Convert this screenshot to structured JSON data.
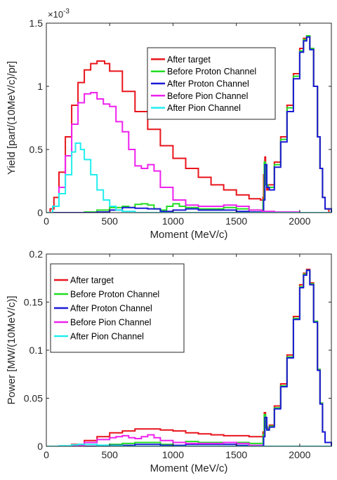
{
  "colors": {
    "after_target": "#e8141b",
    "before_proton": "#22dd22",
    "after_proton": "#1a1ad6",
    "before_pion": "#ee22ee",
    "after_pion": "#22eeee"
  },
  "chart_data": [
    {
      "type": "line",
      "title": "",
      "xlabel": "Moment (MeV/c)",
      "ylabel": "Yield  [part/(10MeV/c)/pr]",
      "y_exponent_label": "×10",
      "y_exponent_power": "-3",
      "xlim": [
        0,
        2250
      ],
      "ylim": [
        0,
        1.5
      ],
      "x_ticks": [
        0,
        500,
        1000,
        1500,
        2000
      ],
      "x_tick_labels": [
        "0",
        "500",
        "1000",
        "1500",
        "2000"
      ],
      "y_ticks": [
        0,
        0.5,
        1,
        1.5
      ],
      "y_tick_labels": [
        "0",
        "0.5",
        "1",
        "1.5"
      ],
      "legend_position": "top-center",
      "series": [
        {
          "name": "After target",
          "color_key": "after_target",
          "x": [
            0,
            30,
            60,
            100,
            150,
            200,
            250,
            300,
            350,
            400,
            430,
            460,
            500,
            600,
            700,
            800,
            900,
            1000,
            1100,
            1200,
            1300,
            1400,
            1500,
            1600,
            1690,
            1710,
            1715,
            1725,
            1730,
            1740,
            1750,
            1800,
            1850,
            1900,
            1950,
            2000,
            2030,
            2055,
            2080,
            2110,
            2140,
            2160,
            2180,
            2200,
            2230,
            2250
          ],
          "y": [
            0,
            0.03,
            0.12,
            0.32,
            0.6,
            0.85,
            1.03,
            1.13,
            1.18,
            1.2,
            1.2,
            1.18,
            1.12,
            0.96,
            0.8,
            0.66,
            0.53,
            0.43,
            0.35,
            0.28,
            0.22,
            0.18,
            0.14,
            0.11,
            0.1,
            0.12,
            0.3,
            0.44,
            0.25,
            0.18,
            0.22,
            0.4,
            0.6,
            0.85,
            1.1,
            1.3,
            1.38,
            1.4,
            1.3,
            1.0,
            0.6,
            0.35,
            0.12,
            0.03,
            0,
            0
          ]
        },
        {
          "name": "Before Proton Channel",
          "color_key": "before_proton",
          "x": [
            0,
            300,
            400,
            500,
            600,
            650,
            700,
            750,
            800,
            850,
            900,
            950,
            1000,
            1050,
            1100,
            1200,
            1300,
            1400,
            1500,
            1600,
            1690,
            1710,
            1720,
            1730,
            1750,
            1800,
            1850,
            1900,
            1950,
            2000,
            2030,
            2055,
            2080,
            2110,
            2140,
            2160,
            2180,
            2200,
            2250
          ],
          "y": [
            0,
            0.005,
            0.02,
            0.04,
            0.05,
            0.04,
            0.065,
            0.07,
            0.06,
            0.03,
            0.02,
            0.05,
            0.07,
            0.05,
            0.04,
            0.03,
            0.03,
            0.04,
            0.03,
            0.02,
            0.02,
            0.1,
            0.4,
            0.22,
            0.2,
            0.38,
            0.58,
            0.83,
            1.08,
            1.28,
            1.37,
            1.4,
            1.3,
            1.0,
            0.6,
            0.35,
            0.12,
            0.03,
            0
          ]
        },
        {
          "name": "After Proton Channel",
          "color_key": "after_proton",
          "x": [
            0,
            400,
            500,
            600,
            700,
            800,
            900,
            1000,
            1100,
            1200,
            1300,
            1400,
            1500,
            1600,
            1700,
            1715,
            1725,
            1740,
            1760,
            1800,
            1850,
            1900,
            1950,
            2000,
            2030,
            2055,
            2080,
            2110,
            2140,
            2160,
            2180,
            2200,
            2250
          ],
          "y": [
            0,
            0.005,
            0.02,
            0.04,
            0.035,
            0.03,
            0.01,
            0.02,
            0.03,
            0.02,
            0.02,
            0.02,
            0.01,
            0.005,
            0.01,
            0.1,
            0.38,
            0.2,
            0.18,
            0.36,
            0.56,
            0.8,
            1.06,
            1.27,
            1.36,
            1.39,
            1.29,
            1.0,
            0.6,
            0.35,
            0.12,
            0.03,
            0
          ]
        },
        {
          "name": "Before Pion Channel",
          "color_key": "before_pion",
          "x": [
            0,
            50,
            100,
            150,
            200,
            250,
            300,
            350,
            400,
            450,
            500,
            550,
            600,
            650,
            700,
            750,
            800,
            850,
            900,
            1000,
            1100,
            1200,
            1300,
            1400,
            1500,
            1600,
            1700,
            1800,
            2000,
            2250
          ],
          "y": [
            0,
            0.05,
            0.2,
            0.45,
            0.7,
            0.87,
            0.94,
            0.95,
            0.9,
            0.86,
            0.84,
            0.72,
            0.64,
            0.5,
            0.37,
            0.35,
            0.38,
            0.33,
            0.2,
            0.1,
            0.06,
            0.05,
            0.05,
            0.06,
            0.05,
            0.02,
            0.01,
            0.005,
            0,
            0
          ]
        },
        {
          "name": "After Pion Channel",
          "color_key": "after_pion",
          "x": [
            0,
            50,
            100,
            150,
            200,
            230,
            250,
            270,
            300,
            350,
            400,
            450,
            500,
            550,
            600,
            700,
            2250
          ],
          "y": [
            0,
            0.05,
            0.15,
            0.3,
            0.48,
            0.55,
            0.55,
            0.5,
            0.42,
            0.3,
            0.18,
            0.1,
            0.05,
            0.02,
            0.01,
            0,
            0
          ]
        }
      ]
    },
    {
      "type": "line",
      "title": "",
      "xlabel": "Moment (MeV/c)",
      "ylabel": "Power  [MW/(10MeV/c)]",
      "xlim": [
        0,
        2250
      ],
      "ylim": [
        0,
        0.2
      ],
      "x_ticks": [
        0,
        500,
        1000,
        1500,
        2000
      ],
      "x_tick_labels": [
        "0",
        "500",
        "1000",
        "1500",
        "2000"
      ],
      "y_ticks": [
        0,
        0.05,
        0.1,
        0.15,
        0.2
      ],
      "y_tick_labels": [
        "0",
        "0.05",
        "0.1",
        "0.15",
        "0.2"
      ],
      "legend_position": "top-left",
      "series": [
        {
          "name": "After target",
          "color_key": "after_target",
          "x": [
            0,
            200,
            300,
            400,
            500,
            600,
            700,
            800,
            900,
            1000,
            1100,
            1200,
            1300,
            1400,
            1500,
            1600,
            1690,
            1710,
            1720,
            1730,
            1745,
            1760,
            1800,
            1850,
            1900,
            1950,
            2000,
            2030,
            2055,
            2080,
            2110,
            2140,
            2160,
            2180,
            2200,
            2250
          ],
          "y": [
            0,
            0.002,
            0.006,
            0.01,
            0.014,
            0.016,
            0.018,
            0.018,
            0.017,
            0.016,
            0.014,
            0.013,
            0.012,
            0.011,
            0.011,
            0.01,
            0.01,
            0.015,
            0.035,
            0.02,
            0.018,
            0.022,
            0.042,
            0.065,
            0.095,
            0.135,
            0.168,
            0.18,
            0.184,
            0.17,
            0.13,
            0.08,
            0.045,
            0.015,
            0.004,
            0
          ]
        },
        {
          "name": "Before Proton Channel",
          "color_key": "before_proton",
          "x": [
            0,
            400,
            500,
            600,
            700,
            800,
            900,
            1000,
            1100,
            1200,
            1400,
            1600,
            1690,
            1710,
            1720,
            1730,
            1745,
            1760,
            1800,
            1850,
            1900,
            1950,
            2000,
            2030,
            2055,
            2080,
            2110,
            2140,
            2160,
            2180,
            2200,
            2250
          ],
          "y": [
            0,
            0.001,
            0.002,
            0.003,
            0.004,
            0.004,
            0.002,
            0.004,
            0.005,
            0.004,
            0.004,
            0.003,
            0.003,
            0.012,
            0.033,
            0.019,
            0.017,
            0.021,
            0.04,
            0.063,
            0.093,
            0.133,
            0.166,
            0.179,
            0.183,
            0.169,
            0.13,
            0.08,
            0.045,
            0.015,
            0.004,
            0
          ]
        },
        {
          "name": "After Proton Channel",
          "color_key": "after_proton",
          "x": [
            0,
            500,
            700,
            900,
            1100,
            1300,
            1500,
            1700,
            1715,
            1725,
            1740,
            1760,
            1800,
            1850,
            1900,
            1950,
            2000,
            2030,
            2055,
            2080,
            2110,
            2140,
            2160,
            2180,
            2200,
            2250
          ],
          "y": [
            0,
            0.001,
            0.002,
            0.001,
            0.002,
            0.002,
            0.001,
            0.001,
            0.01,
            0.03,
            0.017,
            0.02,
            0.039,
            0.062,
            0.092,
            0.132,
            0.165,
            0.178,
            0.183,
            0.168,
            0.129,
            0.079,
            0.044,
            0.015,
            0.004,
            0
          ]
        },
        {
          "name": "Before Pion Channel",
          "color_key": "before_pion",
          "x": [
            0,
            200,
            300,
            400,
            500,
            550,
            600,
            650,
            700,
            750,
            800,
            850,
            900,
            1000,
            1100,
            1200,
            1300,
            1400,
            1500,
            1600,
            1700,
            2250
          ],
          "y": [
            0,
            0.001,
            0.004,
            0.007,
            0.009,
            0.01,
            0.011,
            0.009,
            0.008,
            0.01,
            0.012,
            0.009,
            0.006,
            0.004,
            0.003,
            0.003,
            0.003,
            0.004,
            0.003,
            0.001,
            0,
            0
          ]
        },
        {
          "name": "After Pion Channel",
          "color_key": "after_pion",
          "x": [
            0,
            100,
            200,
            250,
            300,
            400,
            500,
            600,
            2250
          ],
          "y": [
            0,
            0.0005,
            0.0015,
            0.002,
            0.002,
            0.0012,
            0.0005,
            0,
            0
          ]
        }
      ]
    }
  ]
}
